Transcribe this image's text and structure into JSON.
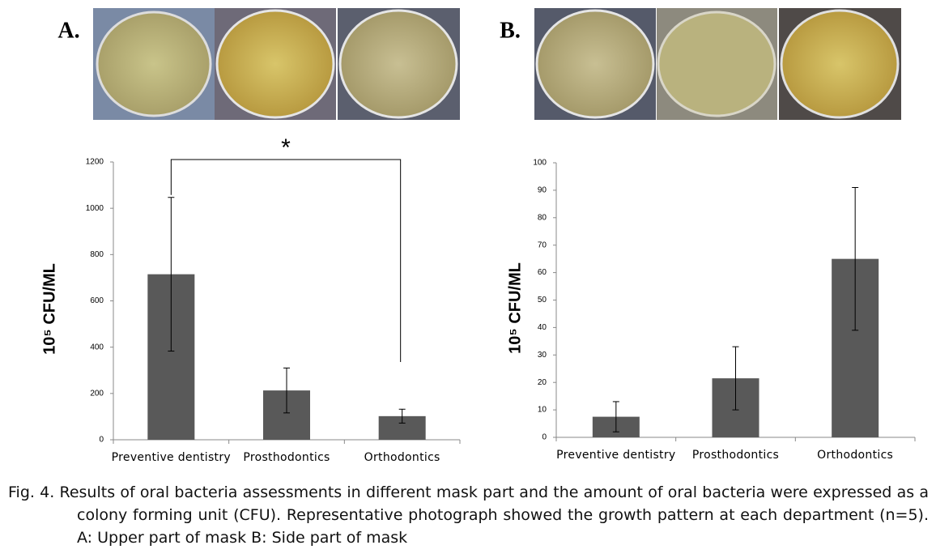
{
  "chart_data": [
    {
      "type": "bar",
      "panel_label": "A.",
      "annotation": "*",
      "categories": [
        "Preventive dentistry",
        "Prosthodontics",
        "Orthodontics"
      ],
      "values": [
        715,
        213,
        102
      ],
      "errors": [
        332,
        97,
        30
      ],
      "color": "#595959",
      "ylabel": "10⁵ CFU/ML",
      "ylim": [
        0,
        1200
      ],
      "yticks": [
        0,
        200,
        400,
        600,
        800,
        1000,
        1200
      ]
    },
    {
      "type": "bar",
      "panel_label": "B.",
      "categories": [
        "Preventive dentistry",
        "Prosthodontics",
        "Orthodontics"
      ],
      "values": [
        7.5,
        21.5,
        65
      ],
      "errors": [
        5.5,
        11.5,
        26
      ],
      "color": "#595959",
      "ylabel": "10⁵ CFU/ML",
      "ylim": [
        0,
        100
      ],
      "yticks": [
        0,
        10,
        20,
        30,
        40,
        50,
        60,
        70,
        80,
        90,
        100
      ]
    }
  ],
  "caption": "Fig. 4. Results of oral bacteria assessments in different mask part and the amount of oral bacteria were expressed as a colony forming unit (CFU). Representative photograph showed the growth pattern at each department (n=5). A: Upper part of mask B: Side part of mask"
}
